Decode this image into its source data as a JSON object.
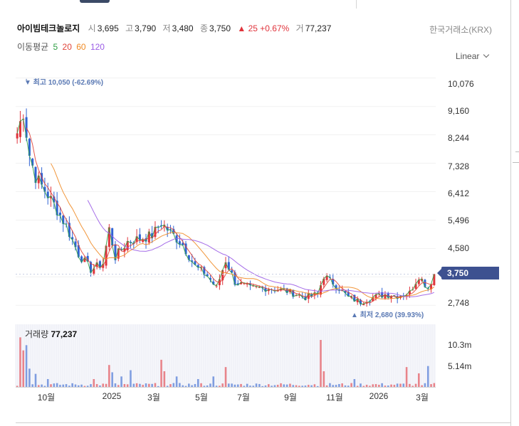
{
  "stock": {
    "name": "아이빔테크놀로지",
    "open_label": "시",
    "open": "3,695",
    "high_label": "고",
    "high": "3,790",
    "low_label": "저",
    "low": "3,480",
    "close_label": "종",
    "close": "3,750",
    "change": "▲ 25 +0.67%",
    "volume_label": "거",
    "volume": "77,237"
  },
  "exchange": "한국거래소(KRX)",
  "ma_legend": {
    "label": "이동평균",
    "p5": "5",
    "p20": "20",
    "p60": "60",
    "p120": "120"
  },
  "scale_mode": "Linear",
  "colors": {
    "up": "#e0343c",
    "down": "#2f63d3",
    "ma5": "#2f9e44",
    "ma20": "#e0443a",
    "ma60": "#f08a24",
    "ma120": "#9b5de5",
    "accent": "#3d5190",
    "marker": "#5a79b4"
  },
  "markers": {
    "max": "▼ 최고 10,050 (-62.69%)",
    "min": "▲ 최저 2,680 (39.93%)"
  },
  "current_price_tag": "3,750",
  "volume_panel": {
    "label": "거래량",
    "value": "77,237"
  },
  "chart_data": {
    "type": "candlestick",
    "y_ticks": [
      "10,076",
      "9,160",
      "8,244",
      "7,328",
      "6,412",
      "5,496",
      "4,580",
      "3,750",
      "2,748"
    ],
    "ylim": [
      2500,
      10300
    ],
    "volume_ticks": [
      "10.3m",
      "5.14m"
    ],
    "x_ticks": [
      "10월",
      "2025",
      "3월",
      "5월",
      "7월",
      "9월",
      "11월",
      "2026",
      "3월"
    ],
    "close_anchors": [
      {
        "t": 0.0,
        "v": 8300
      },
      {
        "t": 2.0,
        "v": 9000
      },
      {
        "t": 4.0,
        "v": 7600
      },
      {
        "t": 6.0,
        "v": 6900
      },
      {
        "t": 8.0,
        "v": 6600
      },
      {
        "t": 12.0,
        "v": 6000
      },
      {
        "t": 16.0,
        "v": 5300
      },
      {
        "t": 20.0,
        "v": 4400
      },
      {
        "t": 24.0,
        "v": 3900
      },
      {
        "t": 28.0,
        "v": 4100
      },
      {
        "t": 30.0,
        "v": 5200
      },
      {
        "t": 32.0,
        "v": 4300
      },
      {
        "t": 36.0,
        "v": 4800
      },
      {
        "t": 40.0,
        "v": 4900
      },
      {
        "t": 44.0,
        "v": 5000
      },
      {
        "t": 47.0,
        "v": 5400
      },
      {
        "t": 50.0,
        "v": 5100
      },
      {
        "t": 54.0,
        "v": 4700
      },
      {
        "t": 58.0,
        "v": 4000
      },
      {
        "t": 62.0,
        "v": 3700
      },
      {
        "t": 65.0,
        "v": 3300
      },
      {
        "t": 68.0,
        "v": 4200
      },
      {
        "t": 71.0,
        "v": 3500
      },
      {
        "t": 76.0,
        "v": 3300
      },
      {
        "t": 82.0,
        "v": 3300
      },
      {
        "t": 88.0,
        "v": 3200
      },
      {
        "t": 94.0,
        "v": 3000
      },
      {
        "t": 98.0,
        "v": 3100
      },
      {
        "t": 100.0,
        "v": 3700
      },
      {
        "t": 104.0,
        "v": 3400
      },
      {
        "t": 108.0,
        "v": 3000
      },
      {
        "t": 112.0,
        "v": 2850
      },
      {
        "t": 116.0,
        "v": 3000
      },
      {
        "t": 120.0,
        "v": 3100
      },
      {
        "t": 124.0,
        "v": 3050
      },
      {
        "t": 128.0,
        "v": 3150
      },
      {
        "t": 131.0,
        "v": 3700
      },
      {
        "t": 134.0,
        "v": 3300
      },
      {
        "t": 136.0,
        "v": 3750
      }
    ],
    "volume_spikes": [
      {
        "t": 1.0,
        "v": 9.5
      },
      {
        "t": 2.0,
        "v": 7.0
      },
      {
        "t": 3.0,
        "v": 8.0
      },
      {
        "t": 4.0,
        "v": 3.5
      },
      {
        "t": 6.0,
        "v": 2.5
      },
      {
        "t": 10.0,
        "v": 1.5
      },
      {
        "t": 25.0,
        "v": 1.5
      },
      {
        "t": 30.0,
        "v": 4.2
      },
      {
        "t": 31.0,
        "v": 2.8
      },
      {
        "t": 34.0,
        "v": 2.0
      },
      {
        "t": 37.0,
        "v": 3.2
      },
      {
        "t": 47.0,
        "v": 5.2
      },
      {
        "t": 48.0,
        "v": 3.0
      },
      {
        "t": 52.0,
        "v": 2.0
      },
      {
        "t": 59.0,
        "v": 1.5
      },
      {
        "t": 64.0,
        "v": 2.0
      },
      {
        "t": 68.0,
        "v": 3.8
      },
      {
        "t": 99.0,
        "v": 9.0
      },
      {
        "t": 100.0,
        "v": 3.0
      },
      {
        "t": 110.0,
        "v": 1.5
      },
      {
        "t": 127.0,
        "v": 3.8
      },
      {
        "t": 131.0,
        "v": 2.6
      },
      {
        "t": 134.0,
        "v": 4.0
      }
    ],
    "volume_max": 12.0
  }
}
